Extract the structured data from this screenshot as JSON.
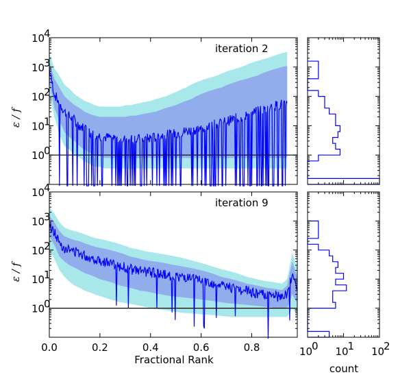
{
  "chart_data": [
    {
      "type": "line",
      "panel": "top-main",
      "annotation": "iteration 2",
      "ylabel": "ε / f",
      "xlabel": "",
      "xlim": [
        0.0,
        1.0
      ],
      "ylim_log10": [
        -1,
        4
      ],
      "y_tick_labels": [
        "10",
        "10",
        "10",
        "10",
        "10"
      ],
      "y_tick_exponents": [
        "0",
        "1",
        "2",
        "3",
        "4"
      ],
      "reference_line_y": 1,
      "x": [
        0.0,
        0.02,
        0.04,
        0.06,
        0.08,
        0.1,
        0.12,
        0.14,
        0.16,
        0.18,
        0.2,
        0.22,
        0.24,
        0.26,
        0.28,
        0.3,
        0.32,
        0.34,
        0.36,
        0.38,
        0.4,
        0.42,
        0.44,
        0.46,
        0.48,
        0.5,
        0.52,
        0.54,
        0.56,
        0.58,
        0.6,
        0.62,
        0.64,
        0.66,
        0.68,
        0.7,
        0.72,
        0.74,
        0.76,
        0.78,
        0.8,
        0.82,
        0.84,
        0.86,
        0.88,
        0.9,
        0.92,
        0.94
      ],
      "median": [
        800,
        120,
        60,
        30,
        20,
        15,
        10,
        8,
        6,
        5,
        4.5,
        4,
        4,
        3.8,
        3.6,
        3.5,
        3.5,
        3.4,
        3.5,
        3.6,
        3.8,
        4,
        4.5,
        5,
        5,
        5.5,
        6,
        6.5,
        7,
        7.5,
        8,
        9,
        10,
        11,
        12,
        14,
        16,
        18,
        20,
        23,
        26,
        30,
        35,
        40,
        45,
        50,
        55,
        60
      ],
      "band_inner_low": [
        300,
        40,
        15,
        6,
        4,
        3,
        2,
        1.5,
        1.2,
        1,
        0.9,
        0.8,
        0.8,
        0.8,
        0.8,
        0.8,
        0.8,
        0.8,
        0.8,
        0.8,
        0.8,
        0.8,
        0.8,
        0.8,
        0.8,
        0.8,
        0.8,
        0.8,
        0.8,
        0.8,
        0.8,
        0.8,
        0.8,
        0.8,
        0.8,
        0.8,
        0.8,
        0.8,
        0.8,
        0.8,
        0.8,
        0.8,
        0.8,
        0.8,
        0.8,
        0.8,
        0.8,
        0.8
      ],
      "band_inner_high": [
        1500,
        400,
        200,
        100,
        70,
        50,
        40,
        30,
        25,
        22,
        20,
        20,
        20,
        20,
        20,
        20,
        22,
        22,
        24,
        26,
        28,
        30,
        35,
        40,
        45,
        50,
        60,
        70,
        80,
        100,
        120,
        140,
        160,
        180,
        200,
        240,
        280,
        320,
        360,
        400,
        450,
        500,
        600,
        700,
        800,
        900,
        1000,
        1100
      ],
      "band_outer_low": [
        150,
        20,
        5,
        2,
        1.5,
        1,
        0.8,
        0.6,
        0.5,
        0.4,
        0.4,
        0.35,
        0.35,
        0.35,
        0.35,
        0.35,
        0.35,
        0.35,
        0.35,
        0.35,
        0.35,
        0.35,
        0.35,
        0.35,
        0.35,
        0.35,
        0.35,
        0.35,
        0.35,
        0.35,
        0.35,
        0.35,
        0.35,
        0.35,
        0.35,
        0.35,
        0.35,
        0.35,
        0.35,
        0.35,
        0.35,
        0.35,
        0.35,
        0.35,
        0.35,
        0.35,
        0.35,
        0.35
      ],
      "band_outer_high": [
        3000,
        900,
        500,
        250,
        180,
        120,
        90,
        70,
        60,
        50,
        45,
        45,
        45,
        45,
        45,
        50,
        50,
        55,
        60,
        65,
        70,
        80,
        90,
        100,
        120,
        140,
        170,
        200,
        250,
        300,
        350,
        400,
        450,
        500,
        600,
        700,
        800,
        900,
        1000,
        1200,
        1400,
        1600,
        1800,
        2000,
        2300,
        2600,
        3000,
        3300
      ]
    },
    {
      "type": "line",
      "panel": "bottom-main",
      "annotation": "iteration 9",
      "ylabel": "ε / f",
      "xlabel": "Fractional Rank",
      "xlim": [
        0.0,
        0.98
      ],
      "ylim_log10": [
        -1,
        4
      ],
      "x_tick_labels": [
        "0.0",
        "0.2",
        "0.4",
        "0.6",
        "0.8"
      ],
      "x_ticks": [
        0.0,
        0.2,
        0.4,
        0.6,
        0.8
      ],
      "y_tick_labels": [
        "10",
        "10",
        "10",
        "10",
        "10"
      ],
      "y_tick_exponents": [
        "0",
        "1",
        "2",
        "3",
        "4"
      ],
      "reference_line_y": 1,
      "x": [
        0.0,
        0.02,
        0.04,
        0.06,
        0.08,
        0.1,
        0.12,
        0.14,
        0.16,
        0.18,
        0.2,
        0.22,
        0.24,
        0.26,
        0.28,
        0.3,
        0.32,
        0.34,
        0.36,
        0.38,
        0.4,
        0.42,
        0.44,
        0.46,
        0.48,
        0.5,
        0.52,
        0.54,
        0.56,
        0.58,
        0.6,
        0.62,
        0.64,
        0.66,
        0.68,
        0.7,
        0.72,
        0.74,
        0.76,
        0.78,
        0.8,
        0.82,
        0.84,
        0.86,
        0.88,
        0.9,
        0.92,
        0.94,
        0.96,
        0.98
      ],
      "median": [
        700,
        400,
        180,
        120,
        100,
        90,
        80,
        65,
        55,
        50,
        45,
        40,
        35,
        30,
        28,
        25,
        22,
        20,
        19,
        18,
        17,
        16,
        15,
        14,
        13,
        12,
        12,
        11,
        10,
        9.5,
        9,
        8,
        7,
        6.5,
        6,
        5.5,
        5,
        4.5,
        4,
        3.8,
        3.5,
        3.2,
        3,
        2.8,
        2.6,
        2.5,
        2.4,
        3,
        15,
        5
      ],
      "band_inner_low": [
        300,
        150,
        60,
        40,
        30,
        25,
        20,
        16,
        14,
        12,
        10,
        9,
        8,
        7,
        6,
        5.5,
        5,
        4.5,
        4,
        3.8,
        3.5,
        3.2,
        3,
        2.8,
        2.6,
        2.5,
        2.4,
        2.3,
        2.2,
        2.1,
        2,
        1.9,
        1.8,
        1.7,
        1.6,
        1.5,
        1.45,
        1.4,
        1.35,
        1.3,
        1.25,
        1.2,
        1.15,
        1.1,
        1.05,
        1,
        1,
        1,
        3,
        1.5
      ],
      "band_inner_high": [
        1500,
        900,
        450,
        300,
        250,
        220,
        200,
        170,
        150,
        130,
        120,
        110,
        100,
        90,
        80,
        70,
        60,
        55,
        50,
        45,
        42,
        40,
        38,
        35,
        32,
        30,
        28,
        26,
        24,
        22,
        20,
        18,
        16,
        14,
        12,
        11,
        10,
        9,
        8,
        7,
        6.5,
        6,
        5.5,
        5,
        4.8,
        4.5,
        4.2,
        6,
        40,
        12
      ],
      "band_outer_low": [
        100,
        50,
        20,
        12,
        8,
        6,
        5,
        4,
        3.5,
        3,
        2.6,
        2.3,
        2,
        1.8,
        1.6,
        1.5,
        1.4,
        1.3,
        1.2,
        1.1,
        1,
        0.95,
        0.9,
        0.85,
        0.8,
        0.75,
        0.7,
        0.68,
        0.66,
        0.64,
        0.62,
        0.6,
        0.58,
        0.56,
        0.54,
        0.52,
        0.5,
        0.5,
        0.5,
        0.5,
        0.5,
        0.5,
        0.5,
        0.5,
        0.5,
        0.5,
        0.5,
        0.5,
        1,
        0.6
      ],
      "band_outer_high": [
        3000,
        1800,
        900,
        600,
        500,
        450,
        400,
        350,
        300,
        260,
        240,
        220,
        200,
        180,
        160,
        140,
        120,
        110,
        100,
        90,
        85,
        80,
        75,
        70,
        65,
        60,
        55,
        50,
        45,
        40,
        36,
        32,
        28,
        25,
        22,
        20,
        18,
        16,
        14,
        12,
        11,
        10,
        9,
        8.5,
        8,
        7.5,
        7,
        10,
        80,
        25
      ]
    },
    {
      "type": "histogram",
      "panel": "top-side",
      "orientation": "horizontal",
      "scale": "log",
      "xlim_log10": [
        0,
        2
      ],
      "ylim_log10": [
        -1,
        4
      ],
      "bin_edges_log10": [
        -1.0,
        -0.8,
        -0.6,
        -0.4,
        -0.2,
        0.0,
        0.2,
        0.4,
        0.6,
        0.8,
        1.0,
        1.2,
        1.4,
        1.6,
        1.8,
        2.0,
        2.2,
        2.4,
        2.6,
        2.8,
        3.0,
        3.2
      ],
      "counts": [
        100,
        1,
        1,
        1,
        2,
        8,
        6,
        5,
        7,
        8,
        6,
        6,
        4,
        3,
        3,
        2,
        1,
        1,
        2,
        2,
        2
      ]
    },
    {
      "type": "histogram",
      "panel": "bottom-side",
      "orientation": "horizontal",
      "scale": "log",
      "xlabel": "count",
      "x_tick_labels": [
        "10",
        "10",
        "10"
      ],
      "x_tick_exponents": [
        "0",
        "1",
        "2"
      ],
      "xlim_log10": [
        0,
        2
      ],
      "ylim_log10": [
        -1,
        4
      ],
      "bin_edges_log10": [
        -1.0,
        -0.8,
        -0.6,
        -0.4,
        -0.2,
        0.0,
        0.2,
        0.4,
        0.6,
        0.8,
        1.0,
        1.2,
        1.4,
        1.6,
        1.8,
        2.0,
        2.2,
        2.4,
        2.6,
        2.8,
        3.0
      ],
      "counts": [
        4,
        1,
        1,
        1,
        1,
        6,
        5,
        5,
        12,
        6,
        10,
        6,
        7,
        5,
        4,
        2,
        1,
        2,
        2,
        2
      ]
    }
  ],
  "colors": {
    "line": "#0000ff",
    "band_inner": "#8fa6ec",
    "band_outer": "#a8e8ea",
    "axis": "#000000",
    "hist": "#0000ff"
  }
}
